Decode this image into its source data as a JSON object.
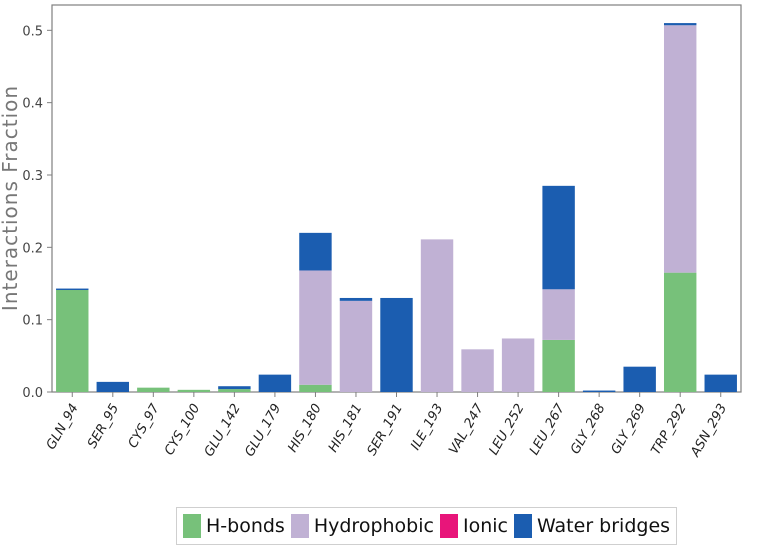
{
  "chart_data": {
    "type": "bar",
    "stacked": true,
    "ylabel": "Interactions Fraction",
    "xlabel": "",
    "ylim": [
      0,
      0.535
    ],
    "yticks": [
      0.0,
      0.1,
      0.2,
      0.3,
      0.4,
      0.5
    ],
    "ytick_labels": [
      "0.0",
      "0.1",
      "0.2",
      "0.3",
      "0.4",
      "0.5"
    ],
    "grid": false,
    "legend_position": "bottom-center",
    "categories": [
      "GLN_94",
      "SER_95",
      "CYS_97",
      "CYS_100",
      "GLU_142",
      "GLU_179",
      "HIS_180",
      "HIS_181",
      "SER_191",
      "ILE_193",
      "VAL_247",
      "LEU_252",
      "LEU_267",
      "GLY_268",
      "GLY_269",
      "TRP_292",
      "ASN_293"
    ],
    "series": [
      {
        "name": "H-bonds",
        "color": "#77c17a",
        "values": [
          0.141,
          0,
          0.006,
          0.003,
          0.004,
          0,
          0.01,
          0,
          0,
          0,
          0,
          0,
          0.072,
          0,
          0,
          0.165,
          0
        ]
      },
      {
        "name": "Hydrophobic",
        "color": "#c0b1d4",
        "values": [
          0,
          0,
          0,
          0,
          0,
          0,
          0.158,
          0.126,
          0,
          0.211,
          0.059,
          0.074,
          0.07,
          0,
          0,
          0.342,
          0
        ]
      },
      {
        "name": "Ionic",
        "color": "#e8157a",
        "values": [
          0,
          0,
          0,
          0,
          0,
          0,
          0,
          0,
          0,
          0,
          0,
          0,
          0,
          0,
          0,
          0,
          0
        ]
      },
      {
        "name": "Water bridges",
        "color": "#1b5db0",
        "values": [
          0.002,
          0.014,
          0,
          0,
          0.004,
          0.024,
          0.052,
          0.004,
          0.13,
          0,
          0,
          0,
          0.143,
          0.002,
          0.035,
          0.003,
          0.024
        ]
      }
    ]
  }
}
